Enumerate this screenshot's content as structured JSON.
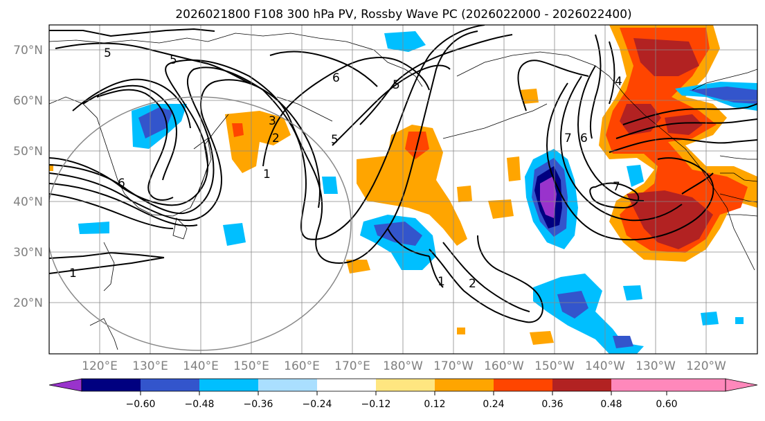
{
  "title": "2026021800 F108 300 hPa PV, Rossby Wave PC (2026022000 - 2026022400)",
  "lat_labels": [
    "70°N",
    "60°N",
    "50°N",
    "40°N",
    "30°N",
    "20°N"
  ],
  "lon_labels": [
    "120°E",
    "130°E",
    "140°E",
    "150°E",
    "160°E",
    "170°E",
    "180°W",
    "170°W",
    "160°W",
    "150°W",
    "140°W",
    "130°W",
    "120°W"
  ],
  "contour_labels": [
    "5",
    "5",
    "6",
    "5",
    "5",
    "3",
    "2",
    "1",
    "6",
    "7",
    "6",
    "7",
    "1",
    "1",
    "2",
    "4"
  ],
  "colorbar": {
    "colors": [
      "#9933cc",
      "#000080",
      "#3355cc",
      "#00bfff",
      "#aadfff",
      "#ffffff",
      "#ffe680",
      "#ffa500",
      "#ff4500",
      "#b22222",
      "#ff88bb"
    ],
    "ticks": [
      "−0.60",
      "−0.48",
      "−0.36",
      "−0.24",
      "−0.12",
      "0.12",
      "0.24",
      "0.36",
      "0.48",
      "0.60"
    ]
  }
}
